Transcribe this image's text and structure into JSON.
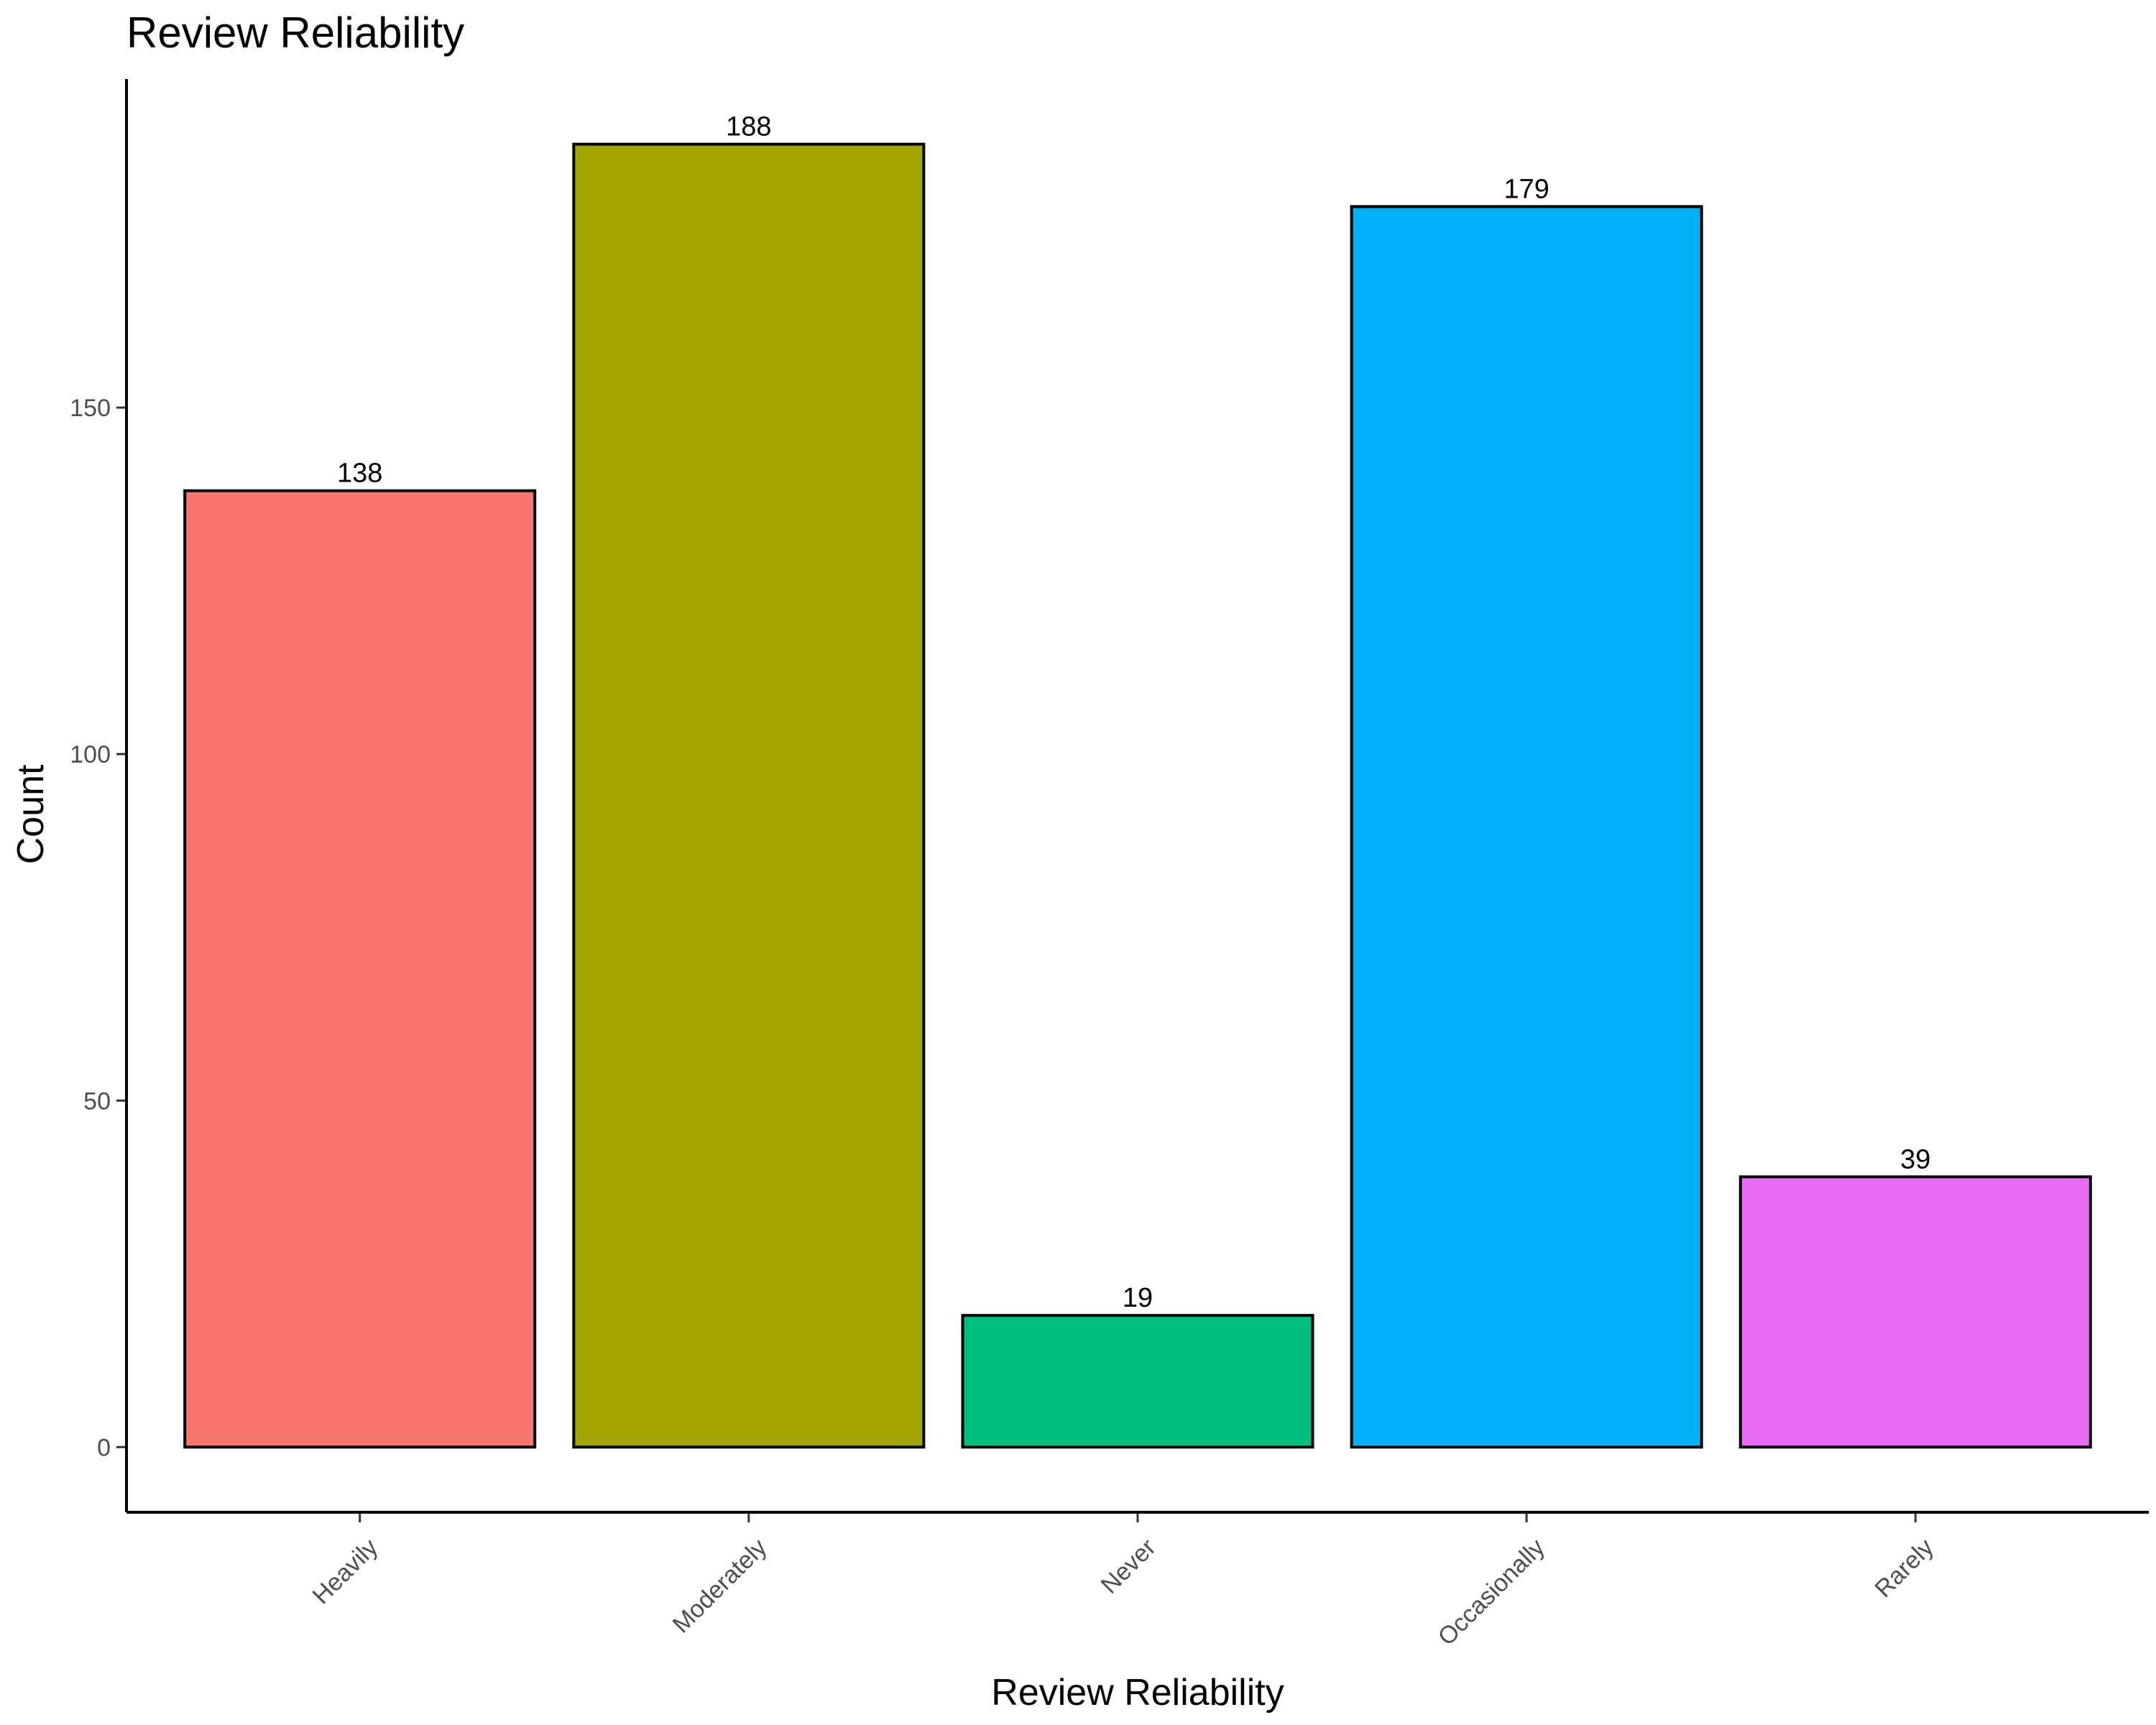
{
  "chart_data": {
    "type": "bar",
    "title": "Review Reliability",
    "xlabel": "Review Reliability",
    "ylabel": "Count",
    "categories": [
      "Heavily",
      "Moderately",
      "Never",
      "Occasionally",
      "Rarely"
    ],
    "values": [
      138,
      188,
      19,
      179,
      39
    ],
    "colors": [
      "#F8766D",
      "#A3A500",
      "#00BF7D",
      "#00B0F6",
      "#E76BF3"
    ],
    "yticks": [
      0,
      50,
      100,
      150
    ],
    "ylim": [
      -9.4,
      197.4
    ],
    "grid": false,
    "legend": "none"
  }
}
